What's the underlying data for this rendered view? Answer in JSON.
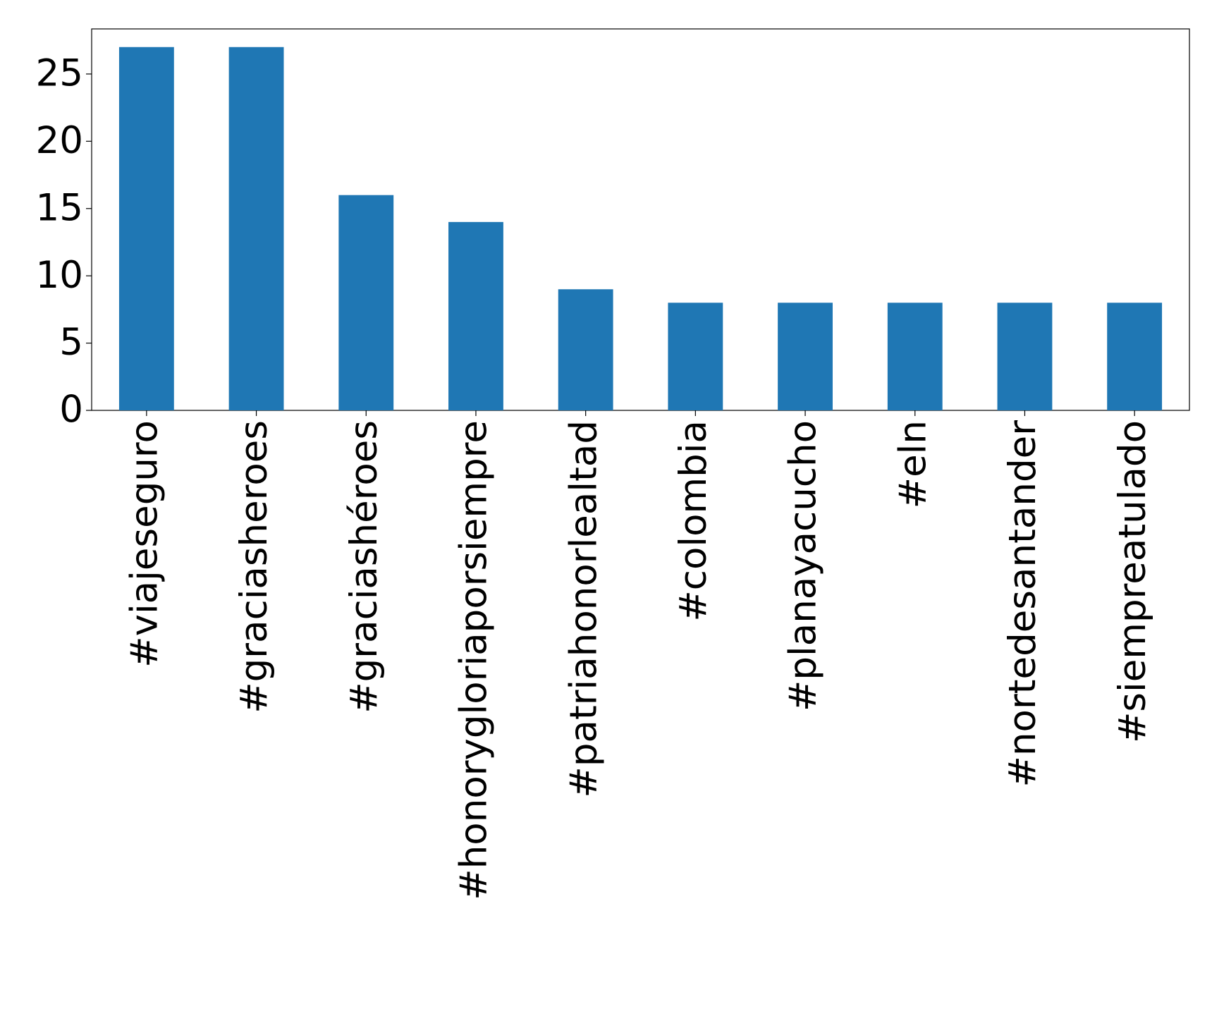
{
  "chart_data": {
    "type": "bar",
    "categories": [
      "#viajeseguro",
      "#graciasheroes",
      "#graciashéroes",
      "#honorygloriaporsiempre",
      "#patriahonorlealtad",
      "#colombia",
      "#planayacucho",
      "#eln",
      "#nortedesantander",
      "#siempreatulado"
    ],
    "values": [
      27,
      27,
      16,
      14,
      9,
      8,
      8,
      8,
      8,
      8
    ],
    "color": "#1f77b4",
    "ylim": [
      0,
      28.35
    ],
    "yticks": [
      0,
      5,
      10,
      15,
      20,
      25
    ],
    "grid": false
  }
}
